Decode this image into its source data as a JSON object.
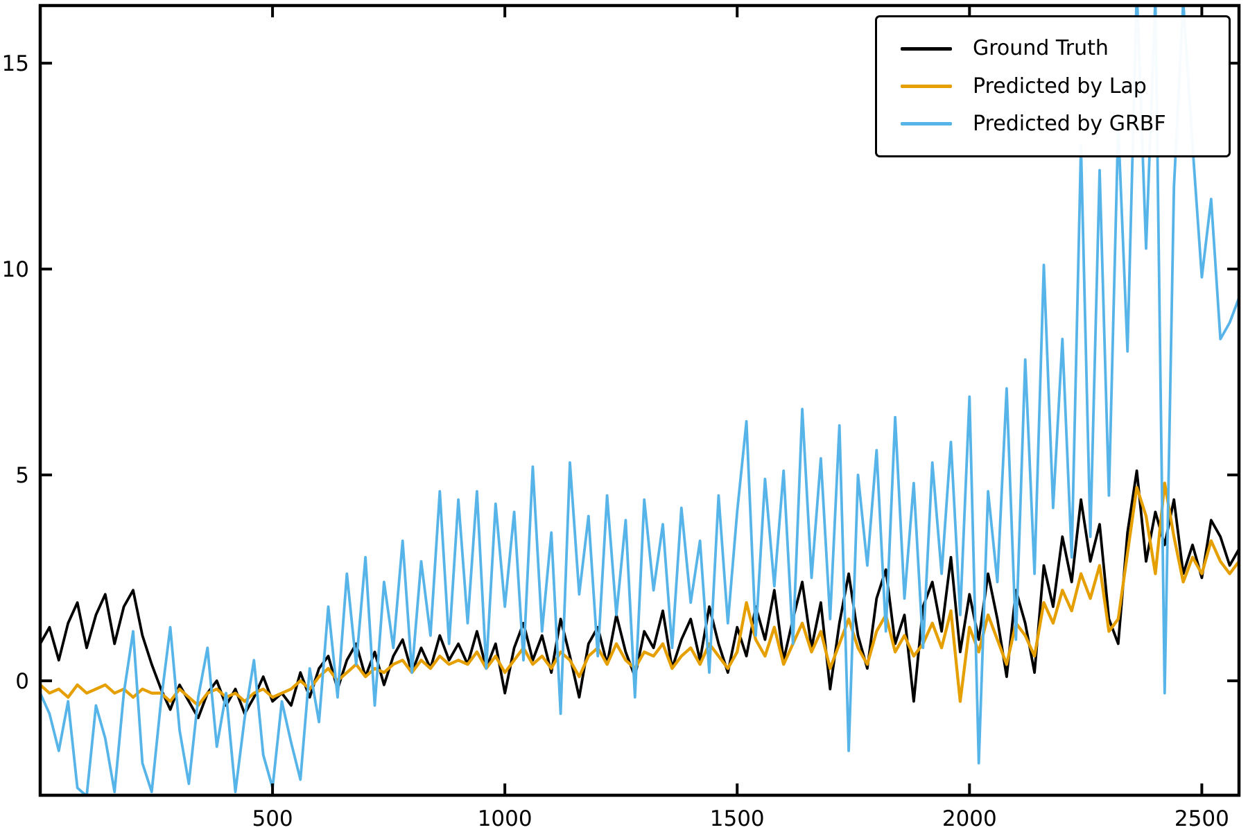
{
  "chart_data": {
    "type": "line",
    "title": "",
    "xlabel": "",
    "ylabel": "",
    "xlim": [
      0,
      2580
    ],
    "ylim": [
      -2.78,
      16.4
    ],
    "x_ticks": [
      500,
      1000,
      1500,
      2000,
      2500
    ],
    "x_tick_labels": [
      "500",
      "1000",
      "1500",
      "2000",
      "2500"
    ],
    "y_ticks": [
      0,
      5,
      10,
      15
    ],
    "y_tick_labels": [
      "0",
      "5",
      "10",
      "15"
    ],
    "grid": false,
    "legend_position": "upper right",
    "tick_direction": "in",
    "spine_color": "#000000",
    "x_start": 0,
    "x_step": 20,
    "series": [
      {
        "name": "Ground Truth",
        "color": "#000000",
        "line_width": 3.8,
        "values": [
          0.9,
          1.3,
          0.5,
          1.4,
          1.9,
          0.8,
          1.6,
          2.1,
          0.9,
          1.8,
          2.2,
          1.1,
          0.4,
          -0.2,
          -0.7,
          -0.1,
          -0.5,
          -0.9,
          -0.3,
          0.0,
          -0.6,
          -0.2,
          -0.8,
          -0.4,
          0.1,
          -0.5,
          -0.3,
          -0.6,
          0.2,
          -0.4,
          0.3,
          0.6,
          -0.2,
          0.5,
          0.9,
          0.1,
          0.7,
          -0.1,
          0.6,
          1.0,
          0.2,
          0.8,
          0.3,
          1.1,
          0.5,
          0.9,
          0.4,
          1.2,
          0.3,
          0.9,
          -0.3,
          0.8,
          1.4,
          0.5,
          1.1,
          0.2,
          1.5,
          0.6,
          -0.4,
          0.9,
          1.3,
          0.4,
          1.6,
          0.7,
          0.1,
          1.2,
          0.8,
          1.7,
          0.3,
          1.0,
          1.5,
          0.5,
          1.8,
          0.9,
          0.2,
          1.3,
          0.6,
          1.8,
          1.0,
          2.2,
          0.5,
          1.5,
          2.4,
          0.8,
          1.9,
          -0.2,
          1.4,
          2.6,
          1.1,
          0.3,
          2.0,
          2.7,
          0.9,
          1.6,
          -0.5,
          1.8,
          2.4,
          1.2,
          3.0,
          0.7,
          2.1,
          1.0,
          2.6,
          1.5,
          0.1,
          2.2,
          1.4,
          0.2,
          2.8,
          1.8,
          3.5,
          2.4,
          4.4,
          2.9,
          3.8,
          1.5,
          0.9,
          3.6,
          5.1,
          2.9,
          4.1,
          3.3,
          4.4,
          2.6,
          3.3,
          2.5,
          3.9,
          3.5,
          2.8,
          3.2
        ]
      },
      {
        "name": "Predicted by Lap",
        "color": "#E69F00",
        "line_width": 4.3,
        "values": [
          -0.1,
          -0.3,
          -0.2,
          -0.4,
          -0.1,
          -0.3,
          -0.2,
          -0.1,
          -0.3,
          -0.2,
          -0.4,
          -0.2,
          -0.3,
          -0.3,
          -0.5,
          -0.2,
          -0.4,
          -0.6,
          -0.3,
          -0.2,
          -0.4,
          -0.3,
          -0.5,
          -0.3,
          -0.2,
          -0.4,
          -0.3,
          -0.2,
          0.0,
          -0.2,
          0.1,
          0.3,
          0.0,
          0.2,
          0.4,
          0.1,
          0.3,
          0.2,
          0.4,
          0.5,
          0.2,
          0.5,
          0.3,
          0.6,
          0.4,
          0.5,
          0.4,
          0.7,
          0.3,
          0.6,
          0.2,
          0.5,
          0.8,
          0.4,
          0.6,
          0.3,
          0.7,
          0.5,
          0.1,
          0.6,
          0.8,
          0.4,
          0.9,
          0.5,
          0.3,
          0.7,
          0.6,
          0.9,
          0.3,
          0.6,
          0.8,
          0.4,
          0.9,
          0.6,
          0.3,
          0.7,
          1.9,
          1.0,
          0.6,
          1.3,
          0.4,
          0.9,
          1.4,
          0.7,
          1.2,
          0.3,
          0.9,
          1.5,
          0.8,
          0.4,
          1.2,
          1.6,
          0.7,
          1.1,
          0.6,
          0.9,
          1.4,
          0.8,
          1.7,
          -0.5,
          1.3,
          0.7,
          1.6,
          1.0,
          0.4,
          1.4,
          1.1,
          0.6,
          1.9,
          1.4,
          2.2,
          1.7,
          2.6,
          2.0,
          2.8,
          1.2,
          1.5,
          3.1,
          4.7,
          4.0,
          2.6,
          4.8,
          3.5,
          2.4,
          3.0,
          2.6,
          3.4,
          2.9,
          2.6,
          2.9
        ]
      },
      {
        "name": "Predicted by GRBF",
        "color": "#56B4E9",
        "line_width": 3.8,
        "values": [
          -0.3,
          -0.8,
          -1.7,
          -0.5,
          -2.6,
          -2.8,
          -0.6,
          -1.4,
          -2.7,
          -0.3,
          1.2,
          -2.0,
          -2.7,
          -0.5,
          1.3,
          -1.2,
          -2.5,
          -0.4,
          0.8,
          -1.6,
          -0.3,
          -2.7,
          -0.9,
          0.5,
          -1.8,
          -2.6,
          -0.5,
          -1.5,
          -2.4,
          0.3,
          -1.0,
          1.8,
          -0.4,
          2.6,
          0.4,
          3.0,
          -0.6,
          2.4,
          0.8,
          3.4,
          0.2,
          2.9,
          1.1,
          4.6,
          0.9,
          4.4,
          1.4,
          4.6,
          0.3,
          4.3,
          1.8,
          4.1,
          0.5,
          5.2,
          1.2,
          3.6,
          -0.8,
          5.3,
          2.1,
          4.0,
          0.6,
          4.5,
          1.6,
          3.9,
          -0.4,
          4.4,
          2.2,
          3.8,
          0.8,
          4.2,
          1.9,
          3.4,
          0.2,
          4.5,
          1.4,
          4.1,
          6.3,
          1.1,
          4.9,
          2.3,
          5.1,
          0.9,
          6.6,
          2.5,
          5.4,
          1.5,
          6.2,
          -1.7,
          5.0,
          2.8,
          5.6,
          1.2,
          6.4,
          2.0,
          4.8,
          0.8,
          5.3,
          2.6,
          5.8,
          1.6,
          6.9,
          -2.0,
          4.6,
          2.4,
          7.1,
          1.0,
          7.8,
          2.6,
          10.1,
          4.2,
          8.3,
          3.0,
          13.0,
          3.5,
          12.4,
          4.5,
          13.5,
          8.0,
          16.8,
          10.5,
          16.6,
          -0.3,
          12.0,
          16.5,
          13.0,
          9.8,
          11.7,
          8.3,
          8.7,
          9.3
        ]
      }
    ]
  }
}
